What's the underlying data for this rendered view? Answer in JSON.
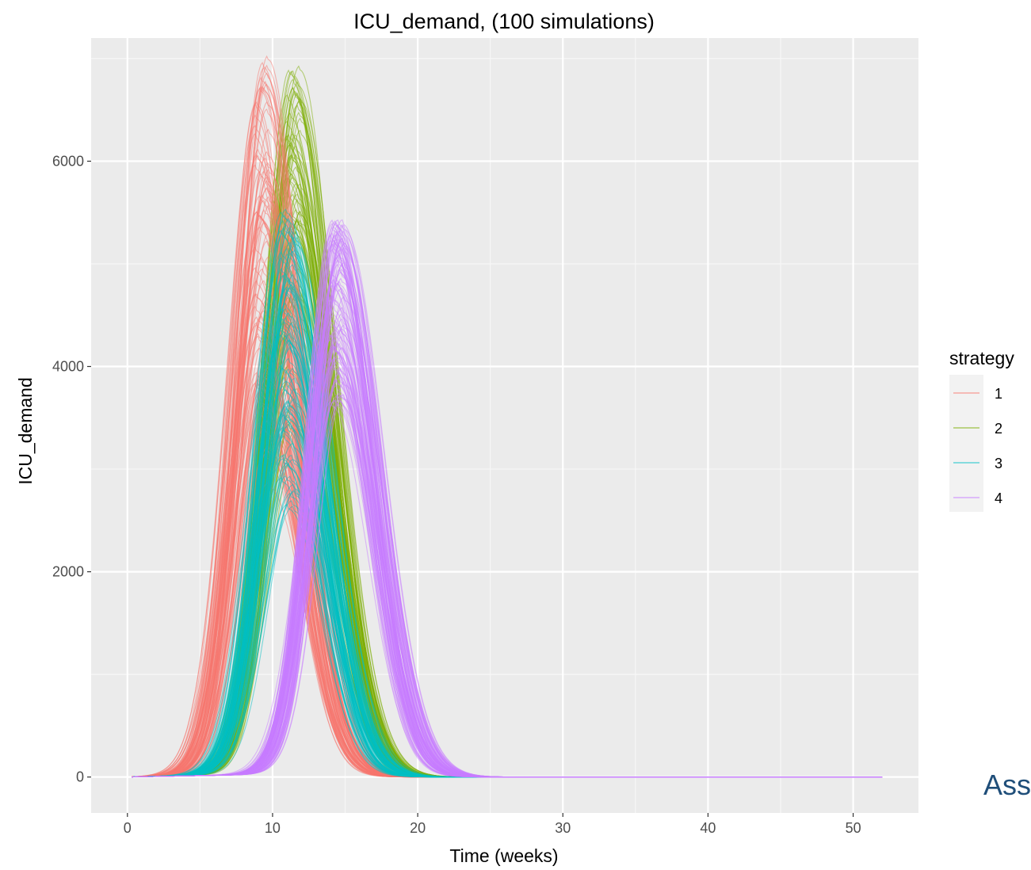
{
  "chart_data": {
    "type": "line",
    "title": "ICU_demand, (100 simulations)",
    "xlabel": "Time (weeks)",
    "ylabel": "ICU_demand",
    "xlim": [
      -2.5,
      54.5
    ],
    "ylim": [
      -350,
      7200
    ],
    "x_ticks": [
      0,
      10,
      20,
      30,
      40,
      50
    ],
    "x_tick_labels": [
      "0",
      "10",
      "20",
      "30",
      "40",
      "50"
    ],
    "y_ticks": [
      0,
      2000,
      4000,
      6000
    ],
    "y_tick_labels": [
      "0",
      "2000",
      "4000",
      "6000"
    ],
    "grid": true,
    "x_range": [
      0.3,
      52
    ],
    "legend": {
      "title": "strategy",
      "position": "right"
    },
    "series": [
      {
        "name": "1",
        "color": "#F8766D",
        "peak_week_range": [
          8.8,
          9.8
        ],
        "peak_value_range": [
          2800,
          7000
        ],
        "simulations": 100
      },
      {
        "name": "2",
        "color": "#7CAE00",
        "peak_week_range": [
          11.0,
          12.0
        ],
        "peak_value_range": [
          3200,
          6900
        ],
        "simulations": 100
      },
      {
        "name": "3",
        "color": "#00BFC4",
        "peak_week_range": [
          10.6,
          11.6
        ],
        "peak_value_range": [
          2500,
          5500
        ],
        "simulations": 100
      },
      {
        "name": "4",
        "color": "#C77CFF",
        "peak_week_range": [
          14.0,
          15.0
        ],
        "peak_value_range": [
          3600,
          5400
        ],
        "simulations": 100
      }
    ]
  },
  "edge_text": "Ass"
}
